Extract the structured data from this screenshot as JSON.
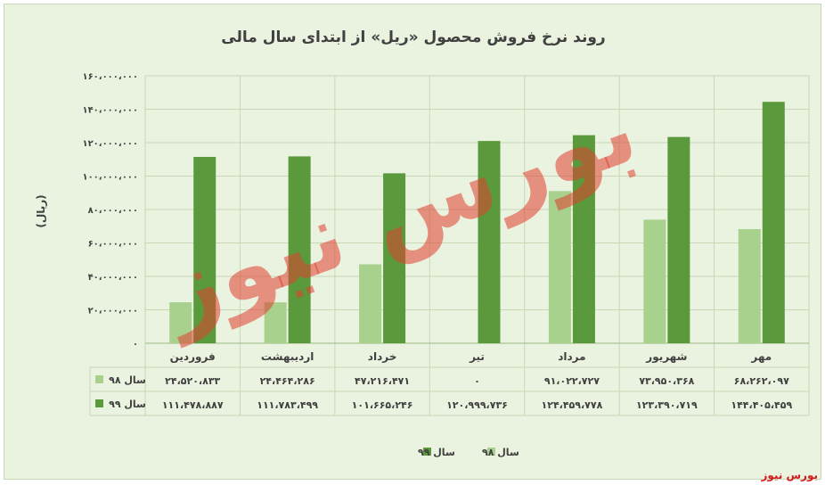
{
  "chart_data": {
    "type": "bar",
    "title": "روند نرخ فروش محصول «ریل» از ابتدای سال مالی",
    "ylabel": "(ریال)",
    "ylim": [
      0,
      160000000
    ],
    "yticks": [
      0,
      20000000,
      40000000,
      60000000,
      80000000,
      100000000,
      120000000,
      140000000,
      160000000
    ],
    "ytick_labels": [
      "۰",
      "۲۰،۰۰۰،۰۰۰",
      "۴۰،۰۰۰،۰۰۰",
      "۶۰،۰۰۰،۰۰۰",
      "۸۰،۰۰۰،۰۰۰",
      "۱۰۰،۰۰۰،۰۰۰",
      "۱۲۰،۰۰۰،۰۰۰",
      "۱۴۰،۰۰۰،۰۰۰",
      "۱۶۰،۰۰۰،۰۰۰"
    ],
    "categories": [
      "فروردین",
      "اردیبهشت",
      "خرداد",
      "تیر",
      "مرداد",
      "شهریور",
      "مهر"
    ],
    "series": [
      {
        "name": "سال ۹۸",
        "color": "#a9d18e",
        "values": [
          24520833,
          24464286,
          47216471,
          0,
          91022727,
          73950368,
          68262097
        ],
        "labels": [
          "۲۴،۵۲۰،۸۳۳",
          "۲۴،۴۶۴،۲۸۶",
          "۴۷،۲۱۶،۴۷۱",
          "۰",
          "۹۱،۰۲۲،۷۲۷",
          "۷۳،۹۵۰،۳۶۸",
          "۶۸،۲۶۲،۰۹۷"
        ]
      },
      {
        "name": "سال ۹۹",
        "color": "#5b9a3c",
        "values": [
          111478887,
          111783499,
          101665246,
          120999736,
          124459778,
          123390719,
          144405459
        ],
        "labels": [
          "۱۱۱،۴۷۸،۸۸۷",
          "۱۱۱،۷۸۳،۴۹۹",
          "۱۰۱،۶۶۵،۲۴۶",
          "۱۲۰،۹۹۹،۷۳۶",
          "۱۲۴،۴۵۹،۷۷۸",
          "۱۲۳،۳۹۰،۷۱۹",
          "۱۴۴،۴۰۵،۴۵۹"
        ]
      }
    ],
    "grid": true,
    "legend": "bottom",
    "data_table": true
  },
  "watermark": "بورس نیوز",
  "brand": "بورس نیوز"
}
